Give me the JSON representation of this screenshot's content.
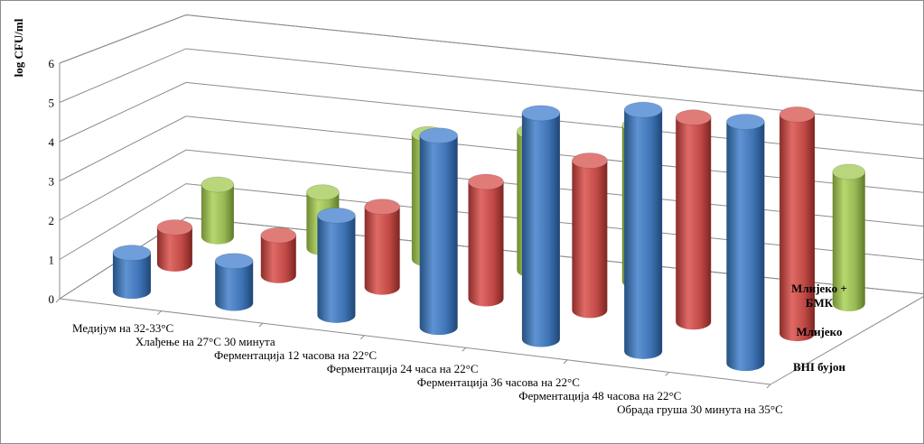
{
  "chart_data": {
    "type": "bar",
    "variant": "3d-cylinder",
    "ylabel": "log CFU/ml",
    "ylim": [
      0,
      6
    ],
    "yticks": [
      "0",
      "1",
      "2",
      "3",
      "4",
      "5",
      "6"
    ],
    "categories": [
      "Медијум  на 32-33°C",
      "Хлађење  на 27°C 30 минута",
      "Ферментација  12 часова на 22°C",
      "Ферментација 24 часа на 22°C",
      "Ферментација  36 часова на 22°C",
      "Ферментација  48 часова на 22°C",
      "Обрада груша  30 минута  на 35°C"
    ],
    "series": [
      {
        "name": "BHI бујон",
        "color": "#4a7ebb",
        "values": [
          1.0,
          1.1,
          2.6,
          5.0,
          5.9,
          6.3,
          6.3
        ]
      },
      {
        "name": "Млијеко",
        "color": "#c0504d",
        "values": [
          1.0,
          1.1,
          2.2,
          3.2,
          4.1,
          5.6,
          6.0
        ]
      },
      {
        "name": "Млијеко +\nБМК",
        "color": "#9bbb59",
        "values": [
          1.5,
          1.6,
          3.6,
          4.0,
          4.5,
          4.0,
          3.8
        ]
      }
    ],
    "grid": true,
    "legend": "series-axis-right"
  }
}
